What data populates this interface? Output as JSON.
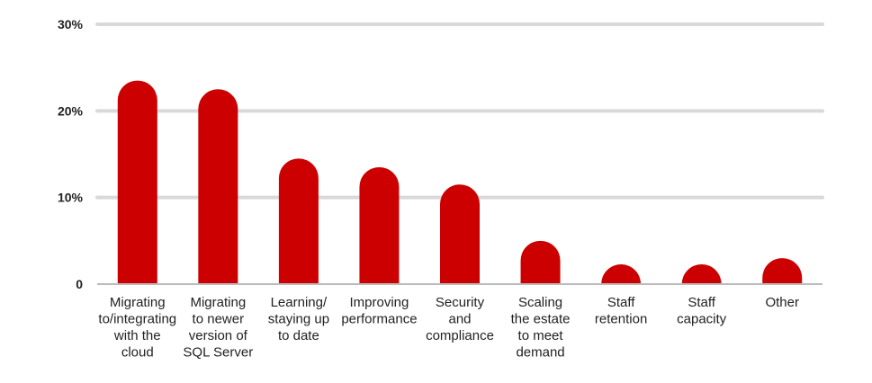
{
  "chart_data": {
    "type": "bar",
    "categories": [
      [
        "Migrating",
        "to/integrating",
        "with the",
        "cloud"
      ],
      [
        "Migrating",
        "to newer",
        "version of",
        "SQL Server"
      ],
      [
        "Learning/",
        "staying up",
        "to date"
      ],
      [
        "Improving",
        "performance"
      ],
      [
        "Security",
        "and",
        "compliance"
      ],
      [
        "Scaling",
        "the estate",
        "to meet",
        "demand"
      ],
      [
        "Staff",
        "retention"
      ],
      [
        "Staff",
        "capacity"
      ],
      [
        "Other"
      ]
    ],
    "values": [
      23.5,
      22.5,
      14.5,
      13.5,
      11.5,
      5,
      2,
      2,
      3
    ],
    "ylim": [
      0,
      30
    ],
    "yticks": [
      {
        "value": 0,
        "label": "0"
      },
      {
        "value": 10,
        "label": "10%"
      },
      {
        "value": 20,
        "label": "20%"
      },
      {
        "value": 30,
        "label": "30%"
      }
    ],
    "grid": true,
    "legend": "none",
    "colors": {
      "bar": "#cc0000",
      "grid": "#d9d9d9",
      "baseline": "#bbbbbb"
    }
  }
}
